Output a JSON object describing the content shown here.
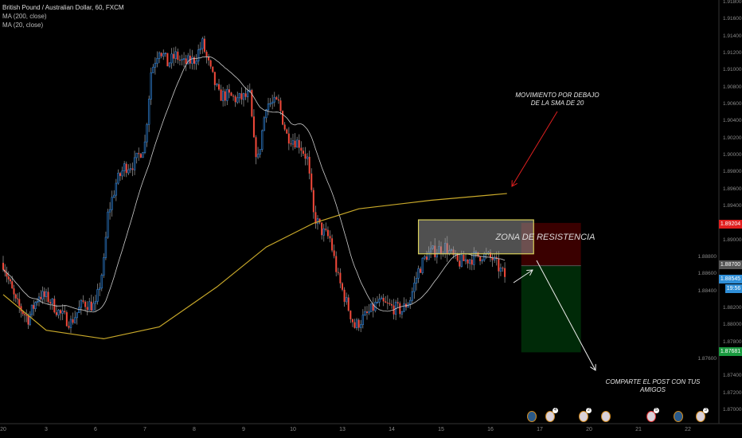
{
  "header": {
    "symbol_title": "British Pound / Australian Dollar, 60, FXCM",
    "indicators": [
      "MA (200, close)",
      "MA (20, close)"
    ]
  },
  "annotations": {
    "top_note_line1": "MOVIMIENTO POR DEBAJO",
    "top_note_line2": "DE LA SMA DE 20",
    "zone_label": "ZONA DE RESISTENCIA",
    "share_note": "COMPARTE EL POST CON TUS AMIGOS"
  },
  "price_badges": {
    "stop": {
      "value": "1.89204",
      "color": "#e01e1e"
    },
    "entry": {
      "value": "1.88700",
      "color": "#555555"
    },
    "last": {
      "value": "1.88545",
      "color": "#2f8fd8"
    },
    "countdown": {
      "value": "19:56",
      "color": "#2f8fd8"
    },
    "target": {
      "value": "1.87681",
      "color": "#1a9a40"
    }
  },
  "events": [
    {
      "flag": "australia",
      "count": ""
    },
    {
      "flag": "uk",
      "count": "4"
    },
    {
      "flag": "uk",
      "count": "2"
    },
    {
      "flag": "uk",
      "count": ""
    },
    {
      "flag": "uk",
      "count": "5",
      "alert": true
    },
    {
      "flag": "australia",
      "count": ""
    },
    {
      "flag": "uk",
      "count": "3"
    }
  ],
  "chart_data": {
    "type": "candlestick",
    "timeframe": "60",
    "x_tick_labels": [
      "20",
      "3",
      "6",
      "7",
      "8",
      "9",
      "10",
      "13",
      "14",
      "15",
      "16",
      "17",
      "20",
      "21",
      "22"
    ],
    "y_tick_labels": [
      "1.91800",
      "1.91600",
      "1.91400",
      "1.91200",
      "1.91000",
      "1.90800",
      "1.90600",
      "1.90400",
      "1.90200",
      "1.90000",
      "1.89800",
      "1.89600",
      "1.89400",
      "1.89000",
      "1.88800",
      "1.88600",
      "1.88400",
      "1.88200",
      "1.88000",
      "1.87800",
      "1.87600",
      "1.87400",
      "1.87200",
      "1.87000"
    ],
    "ylim": [
      1.8695,
      1.9182
    ],
    "colors": {
      "up": "#2f7fd0",
      "down": "#f2493a",
      "wick": "#8a8a8a",
      "ma200": "#c9a92a",
      "ma20": "#cccccc"
    },
    "close_path": [
      [
        "20 00:00",
        1.88734
      ],
      [
        "20 07:00",
        1.88266
      ],
      [
        "20 14:00",
        1.88078
      ],
      [
        "20 20:00",
        1.88359
      ],
      [
        "3 01:00",
        1.88313
      ],
      [
        "3 07:00",
        1.88125
      ],
      [
        "3 12:00",
        1.88031
      ],
      [
        "3 18:00",
        1.88266
      ],
      [
        "6 00:00",
        1.88219
      ],
      [
        "6 04:00",
        1.88734
      ],
      [
        "6 06:00",
        1.89297
      ],
      [
        "6 10:00",
        1.89672
      ],
      [
        "6 14:00",
        1.89859
      ],
      [
        "6 19:00",
        1.89906
      ],
      [
        "7 00:00",
        1.90141
      ],
      [
        "7 03:00",
        1.90984
      ],
      [
        "7 07:00",
        1.91266
      ],
      [
        "7 11:00",
        1.91078
      ],
      [
        "7 15:00",
        1.91172
      ],
      [
        "7 19:00",
        1.91078
      ],
      [
        "8 00:00",
        1.91125
      ],
      [
        "8 04:00",
        1.91312
      ],
      [
        "8 08:00",
        1.90984
      ],
      [
        "8 12:00",
        1.90703
      ],
      [
        "8 16:00",
        1.90703
      ],
      [
        "8 21:00",
        1.90656
      ],
      [
        "9 03:00",
        1.90703
      ],
      [
        "9 05:00",
        1.90141
      ],
      [
        "9 07:00",
        1.89953
      ],
      [
        "9 11:00",
        1.90609
      ],
      [
        "9 17:00",
        1.90609
      ],
      [
        "9 21:00",
        1.90234
      ],
      [
        "10 03:00",
        1.90141
      ],
      [
        "10 07:00",
        1.89953
      ],
      [
        "10 10:00",
        1.89297
      ],
      [
        "10 14:00",
        1.89109
      ],
      [
        "10 18:00",
        1.89016
      ],
      [
        "10 22:00",
        1.88547
      ],
      [
        "13 02:00",
        1.88266
      ],
      [
        "13 06:00",
        1.87984
      ],
      [
        "13 10:00",
        1.88078
      ],
      [
        "13 14:00",
        1.88172
      ],
      [
        "13 17:00",
        1.88266
      ],
      [
        "13 23:00",
        1.88219
      ],
      [
        "14 05:00",
        1.88172
      ],
      [
        "14 09:00",
        1.88313
      ],
      [
        "14 13:00",
        1.88641
      ],
      [
        "14 17:00",
        1.88828
      ],
      [
        "14 21:00",
        1.88875
      ],
      [
        "15 02:00",
        1.88922
      ],
      [
        "15 08:00",
        1.88734
      ],
      [
        "15 14:00",
        1.88781
      ],
      [
        "15 20:00",
        1.88828
      ],
      [
        "16 01:00",
        1.88781
      ],
      [
        "16 05:00",
        1.88641
      ],
      [
        "16 08:00",
        1.88545
      ]
    ],
    "ma200_path": [
      [
        "20 00:00",
        1.8836
      ],
      [
        "3 00:00",
        1.8794
      ],
      [
        "6 04:00",
        1.8784
      ],
      [
        "7 07:00",
        1.8798
      ],
      [
        "8 11:00",
        1.8845
      ],
      [
        "9 11:00",
        1.8892
      ],
      [
        "10 10:00",
        1.892
      ],
      [
        "13 08:00",
        1.8937
      ],
      [
        "14 19:00",
        1.8947
      ],
      [
        "15 23:00",
        1.8953
      ],
      [
        "16 08:00",
        1.8955
      ]
    ],
    "resistance_zone": {
      "from": "14 13:00",
      "to": "16 21:00",
      "top": 1.8924,
      "bottom": 1.8884
    },
    "short_position": {
      "from": "16 15:00",
      "to": "17 20:00",
      "stop": 1.89204,
      "entry": 1.887,
      "target": 1.87681
    }
  }
}
